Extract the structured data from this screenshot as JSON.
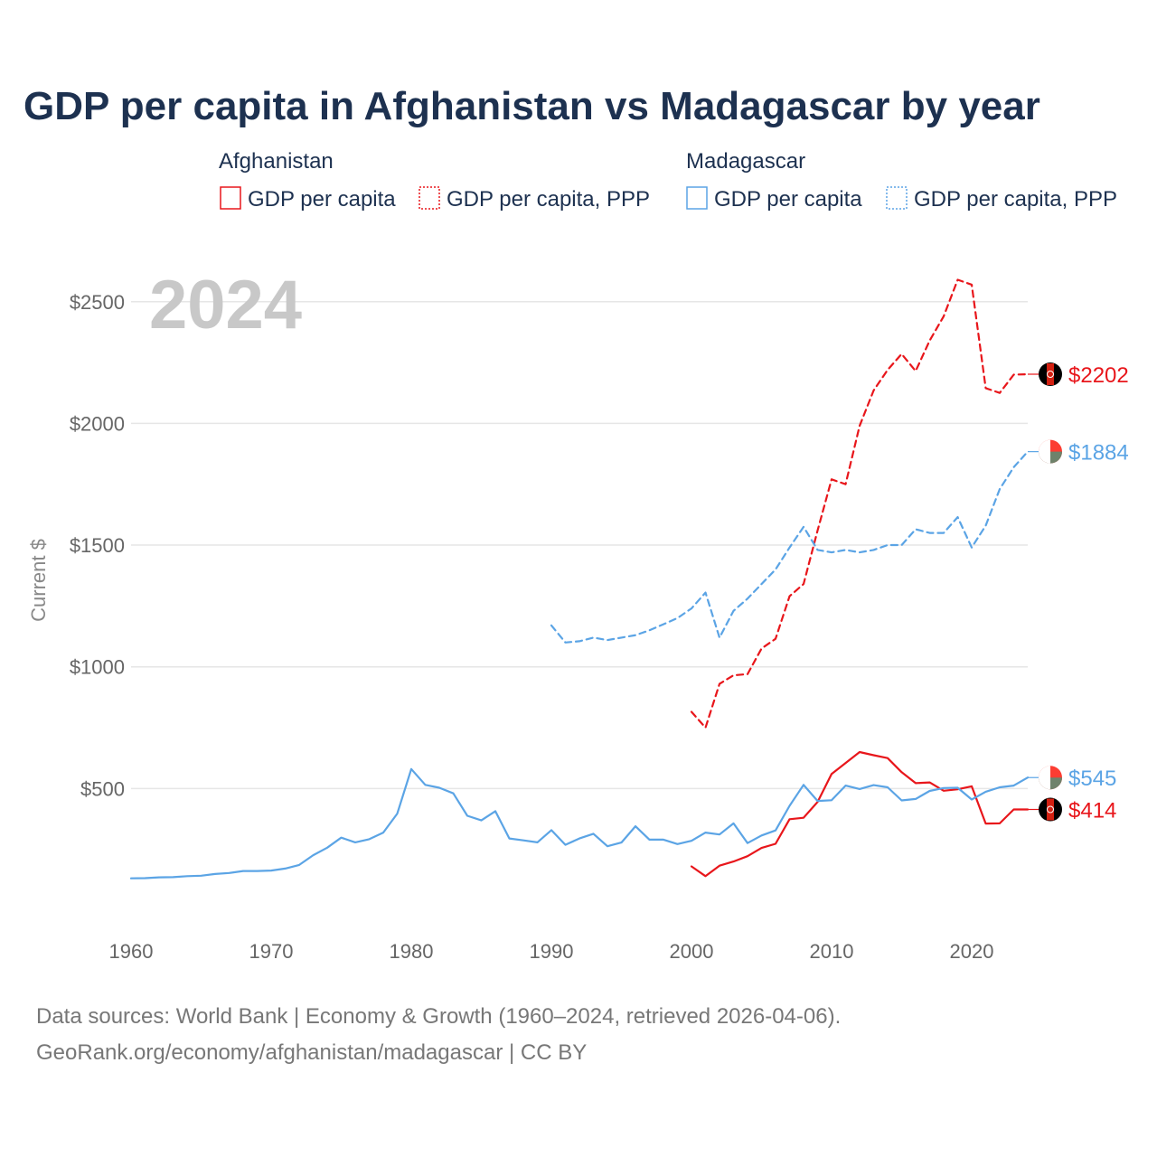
{
  "footer": {
    "line1": "Data sources: World Bank | Economy & Growth (1960–2024, retrieved 2026-04-06).",
    "line2": "GeoRank.org/economy/afghanistan/madagascar | CC BY"
  },
  "chart_data": {
    "type": "line",
    "title": "GDP per capita in Afghanistan vs Madagascar by year",
    "ylabel": "Current $",
    "xlabel": "",
    "year_label": "2024",
    "xlim": [
      1960,
      2024
    ],
    "ylim": [
      0,
      2700
    ],
    "x_ticks": [
      1960,
      1970,
      1980,
      1990,
      2000,
      2010,
      2020
    ],
    "y_ticks": [
      {
        "value": 500,
        "label": "$500"
      },
      {
        "value": 1000,
        "label": "$1000"
      },
      {
        "value": 1500,
        "label": "$1500"
      },
      {
        "value": 2000,
        "label": "$2000"
      },
      {
        "value": 2500,
        "label": "$2500"
      }
    ],
    "legend": {
      "placement": "top",
      "groups": [
        {
          "country": "Afghanistan",
          "color": "#e8161b",
          "entries": [
            "GDP per capita",
            "GDP per capita, PPP"
          ]
        },
        {
          "country": "Madagascar",
          "color": "#5ba4e5",
          "entries": [
            "GDP per capita",
            "GDP per capita, PPP"
          ]
        }
      ]
    },
    "series": [
      {
        "name": "Afghanistan GDP per capita",
        "country": "Afghanistan",
        "color": "#e8161b",
        "dash": false,
        "end_label": "$414",
        "x": [
          2000,
          2001,
          2002,
          2003,
          2004,
          2005,
          2006,
          2007,
          2008,
          2009,
          2010,
          2011,
          2012,
          2013,
          2014,
          2015,
          2016,
          2017,
          2018,
          2019,
          2020,
          2021,
          2022,
          2023,
          2024
        ],
        "y": [
          180,
          140,
          183,
          200,
          222,
          256,
          273,
          374,
          380,
          445,
          560,
          605,
          650,
          637,
          625,
          567,
          522,
          525,
          491,
          497,
          509,
          356,
          357,
          414,
          414
        ]
      },
      {
        "name": "Afghanistan GDP per capita, PPP",
        "country": "Afghanistan",
        "color": "#e8161b",
        "dash": true,
        "end_label": "$2202",
        "x": [
          2000,
          2001,
          2002,
          2003,
          2004,
          2005,
          2006,
          2007,
          2008,
          2009,
          2010,
          2011,
          2012,
          2013,
          2014,
          2015,
          2016,
          2017,
          2018,
          2019,
          2020,
          2021,
          2022,
          2023,
          2024
        ],
        "y": [
          815,
          750,
          930,
          965,
          970,
          1075,
          1115,
          1290,
          1340,
          1560,
          1770,
          1750,
          1990,
          2135,
          2220,
          2285,
          2215,
          2340,
          2440,
          2590,
          2570,
          2145,
          2125,
          2200,
          2202
        ]
      },
      {
        "name": "Madagascar GDP per capita",
        "country": "Madagascar",
        "color": "#5ba4e5",
        "dash": false,
        "end_label": "$545",
        "x": [
          1960,
          1961,
          1962,
          1963,
          1964,
          1965,
          1966,
          1967,
          1968,
          1969,
          1970,
          1971,
          1972,
          1973,
          1974,
          1975,
          1976,
          1977,
          1978,
          1979,
          1980,
          1981,
          1982,
          1983,
          1984,
          1985,
          1986,
          1987,
          1988,
          1989,
          1990,
          1991,
          1992,
          1993,
          1994,
          1995,
          1996,
          1997,
          1998,
          1999,
          2000,
          2001,
          2002,
          2003,
          2004,
          2005,
          2006,
          2007,
          2008,
          2009,
          2010,
          2011,
          2012,
          2013,
          2014,
          2015,
          2016,
          2017,
          2018,
          2019,
          2020,
          2021,
          2022,
          2023,
          2024
        ],
        "y": [
          131,
          132,
          135,
          136,
          140,
          142,
          149,
          153,
          161,
          161,
          163,
          171,
          186,
          226,
          257,
          298,
          279,
          292,
          319,
          397,
          580,
          515,
          503,
          480,
          388,
          369,
          407,
          295,
          287,
          279,
          329,
          269,
          295,
          314,
          263,
          278,
          345,
          290,
          290,
          272,
          285,
          319,
          311,
          357,
          276,
          307,
          328,
          429,
          515,
          449,
          452,
          512,
          498,
          514,
          505,
          451,
          457,
          490,
          502,
          503,
          455,
          487,
          505,
          512,
          545
        ]
      },
      {
        "name": "Madagascar GDP per capita, PPP",
        "country": "Madagascar",
        "color": "#5ba4e5",
        "dash": true,
        "end_label": "$1884",
        "x": [
          1990,
          1991,
          1992,
          1993,
          1994,
          1995,
          1996,
          1997,
          1998,
          1999,
          2000,
          2001,
          2002,
          2003,
          2004,
          2005,
          2006,
          2007,
          2008,
          2009,
          2010,
          2011,
          2012,
          2013,
          2014,
          2015,
          2016,
          2017,
          2018,
          2019,
          2020,
          2021,
          2022,
          2023,
          2024
        ],
        "y": [
          1170,
          1100,
          1105,
          1120,
          1110,
          1120,
          1130,
          1150,
          1175,
          1200,
          1240,
          1305,
          1120,
          1230,
          1280,
          1340,
          1400,
          1490,
          1575,
          1480,
          1470,
          1480,
          1470,
          1480,
          1500,
          1500,
          1565,
          1550,
          1550,
          1615,
          1490,
          1580,
          1730,
          1820,
          1884
        ]
      }
    ]
  }
}
